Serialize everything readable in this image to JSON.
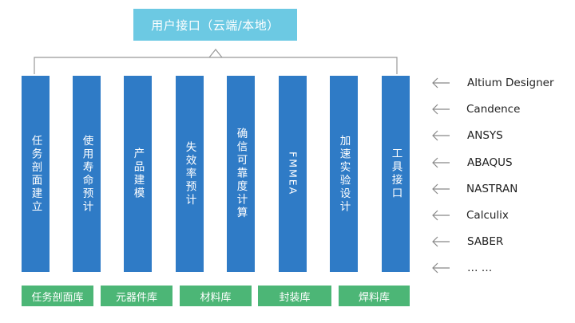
{
  "header": {
    "title": "用户接口（云端/本地）"
  },
  "modules": [
    {
      "label": "任务剖面建立"
    },
    {
      "label": "使用寿命预计"
    },
    {
      "label": "产品建模"
    },
    {
      "label": "失效率预计"
    },
    {
      "label": "确信可靠度计算"
    },
    {
      "label": "FMMEA"
    },
    {
      "label": "加速实验设计"
    },
    {
      "label": "工具接口"
    }
  ],
  "libraries": [
    {
      "label": "任务剖面库"
    },
    {
      "label": "元器件库"
    },
    {
      "label": "材料库"
    },
    {
      "label": "封装库"
    },
    {
      "label": "焊料库"
    }
  ],
  "tools": [
    {
      "name": "Altium Designer"
    },
    {
      "name": "Candence"
    },
    {
      "name": "ANSYS"
    },
    {
      "name": "ABAQUS"
    },
    {
      "name": "NASTRAN"
    },
    {
      "name": "Calculix"
    },
    {
      "name": "SABER"
    },
    {
      "name": "… …"
    }
  ],
  "colors": {
    "header_box": "#6cc9e3",
    "module_column": "#2f7bc6",
    "library_box": "#4cb676",
    "connector_line": "#999999",
    "arrow": "#888888"
  },
  "icons": {
    "tool_arrow": "left-arrow-icon"
  }
}
